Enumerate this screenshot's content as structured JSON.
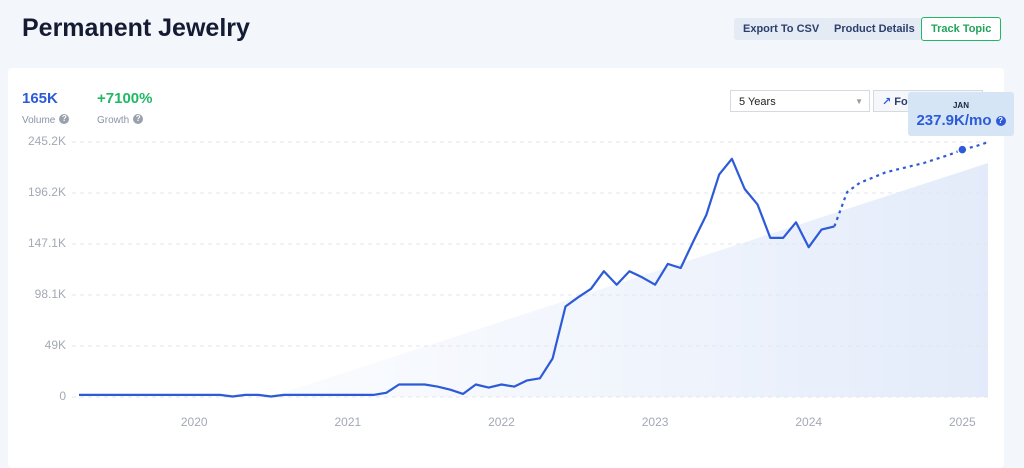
{
  "header": {
    "title": "Permanent Jewelry",
    "buttons": [
      "Export To CSV",
      "Product Details",
      "Track Topic"
    ]
  },
  "metrics": [
    {
      "value": "165K",
      "label": "Volume"
    },
    {
      "value": "+7100%",
      "label": "Growth"
    }
  ],
  "controls": {
    "range": "5 Years",
    "forecast": "Forecast"
  },
  "chart_data": {
    "type": "line",
    "x": [
      2019.25,
      2019.333,
      2019.417,
      2019.5,
      2019.583,
      2019.667,
      2019.75,
      2019.833,
      2019.917,
      2020,
      2020.083,
      2020.167,
      2020.25,
      2020.333,
      2020.417,
      2020.5,
      2020.583,
      2020.667,
      2020.75,
      2020.833,
      2020.917,
      2021,
      2021.083,
      2021.167,
      2021.25,
      2021.333,
      2021.417,
      2021.5,
      2021.583,
      2021.667,
      2021.75,
      2021.833,
      2021.917,
      2022,
      2022.083,
      2022.167,
      2022.25,
      2022.333,
      2022.417,
      2022.5,
      2022.583,
      2022.667,
      2022.75,
      2022.833,
      2022.917,
      2023,
      2023.083,
      2023.167,
      2023.25,
      2023.333,
      2023.417,
      2023.5,
      2023.583,
      2023.667,
      2023.75,
      2023.833,
      2023.917,
      2024,
      2024.083,
      2024.167,
      2024.25,
      2024.333,
      2024.417,
      2024.5,
      2024.583,
      2024.667,
      2024.75,
      2024.833,
      2024.917,
      2025,
      2025.083,
      2025.167
    ],
    "series": [
      {
        "color": "#2d5bd7",
        "dashed": false,
        "values": [
          2,
          2,
          2,
          2,
          2,
          2,
          2,
          2,
          2,
          2,
          2,
          2,
          0.5,
          2,
          2,
          0.5,
          2,
          2,
          2,
          2,
          2,
          2,
          2,
          2,
          4,
          12,
          12,
          12,
          10,
          7,
          3,
          12,
          9,
          12,
          10,
          16,
          18,
          37,
          87,
          96,
          104,
          121,
          108,
          121,
          115,
          108,
          128,
          124,
          150,
          175,
          214,
          229,
          200,
          185,
          153,
          153,
          168,
          144,
          161,
          164,
          null,
          null,
          null,
          null,
          null,
          null,
          null,
          null,
          null,
          null,
          null,
          null
        ]
      },
      {
        "color": "#2d5bd7",
        "dashed": true,
        "values": [
          null,
          null,
          null,
          null,
          null,
          null,
          null,
          null,
          null,
          null,
          null,
          null,
          null,
          null,
          null,
          null,
          null,
          null,
          null,
          null,
          null,
          null,
          null,
          null,
          null,
          null,
          null,
          null,
          null,
          null,
          null,
          null,
          null,
          null,
          null,
          null,
          null,
          null,
          null,
          null,
          null,
          null,
          null,
          null,
          null,
          null,
          null,
          null,
          null,
          null,
          null,
          null,
          null,
          null,
          null,
          null,
          null,
          null,
          null,
          164,
          197,
          206,
          211,
          216,
          219,
          222,
          225,
          229,
          233,
          237.9,
          241,
          245
        ]
      }
    ],
    "xlim": [
      2019.25,
      2025.167
    ],
    "xticks": [
      2020,
      2021,
      2022,
      2023,
      2024,
      2025
    ],
    "ylim": [
      0,
      245.2
    ],
    "yticks": [
      0,
      {
        "value": 49,
        "label": "49K"
      },
      {
        "value": 98.1,
        "label": "98.1K"
      },
      {
        "value": 147.1,
        "label": "147.1K"
      },
      {
        "value": 196.2,
        "label": "196.2K"
      },
      {
        "value": 245.2,
        "label": "245.2K"
      }
    ],
    "grid": true,
    "highlight": {
      "x": 2025,
      "value": 237.9,
      "month": "JAN",
      "label": "237.9K/mo"
    }
  }
}
